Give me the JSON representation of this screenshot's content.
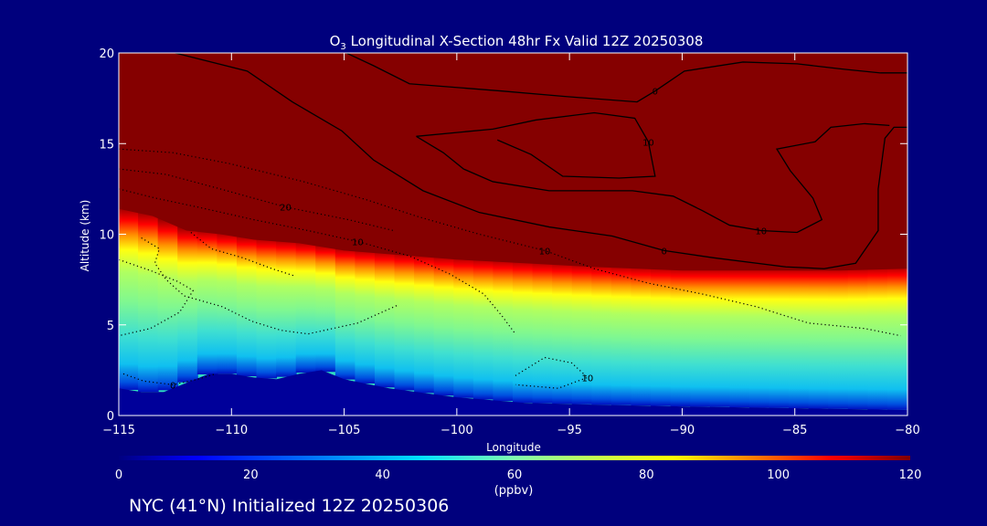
{
  "chart_data": {
    "type": "heatmap",
    "title_prefix": "O",
    "title_sub": "3",
    "title_rest": " Longitudinal X-Section 48hr  Fx Valid 12Z 20250308",
    "xlabel": "Longitude",
    "ylabel": "Altitude (km)",
    "xlim": [
      -115,
      -80
    ],
    "ylim": [
      0,
      20
    ],
    "xticks": [
      -115,
      -110,
      -105,
      -100,
      -95,
      -90,
      -85,
      -80
    ],
    "xtick_labels": [
      "−115",
      "−110",
      "−105",
      "−100",
      "−95",
      "−90",
      "−85",
      "−80"
    ],
    "yticks": [
      0,
      5,
      10,
      15,
      20
    ],
    "ytick_labels": [
      "0",
      "5",
      "10",
      "15",
      "20"
    ],
    "colorbar": {
      "label": "(ppbv)",
      "range": [
        0,
        120
      ],
      "ticks": [
        0,
        20,
        40,
        60,
        80,
        100,
        120
      ],
      "tick_labels": [
        "0",
        "20",
        "40",
        "60",
        "80",
        "100",
        "120"
      ]
    },
    "tropopause": [
      {
        "x": -115,
        "y": 11.4
      },
      {
        "x": -113.5,
        "y": 11.0
      },
      {
        "x": -112,
        "y": 10.2
      },
      {
        "x": -110.5,
        "y": 10.0
      },
      {
        "x": -109,
        "y": 9.7
      },
      {
        "x": -107,
        "y": 9.5
      },
      {
        "x": -105,
        "y": 9.1
      },
      {
        "x": -103,
        "y": 8.9
      },
      {
        "x": -100,
        "y": 8.6
      },
      {
        "x": -97,
        "y": 8.4
      },
      {
        "x": -94,
        "y": 8.2
      },
      {
        "x": -90,
        "y": 8.0
      },
      {
        "x": -86,
        "y": 8.0
      },
      {
        "x": -83,
        "y": 8.0
      },
      {
        "x": -80,
        "y": 8.1
      }
    ],
    "surface": [
      {
        "x": -115,
        "y": 1.5
      },
      {
        "x": -114,
        "y": 1.3
      },
      {
        "x": -113,
        "y": 1.3
      },
      {
        "x": -112,
        "y": 1.8
      },
      {
        "x": -111,
        "y": 2.3
      },
      {
        "x": -110,
        "y": 2.3
      },
      {
        "x": -109,
        "y": 2.1
      },
      {
        "x": -108,
        "y": 2.0
      },
      {
        "x": -107,
        "y": 2.3
      },
      {
        "x": -106,
        "y": 2.5
      },
      {
        "x": -105,
        "y": 2.0
      },
      {
        "x": -103,
        "y": 1.5
      },
      {
        "x": -100,
        "y": 1.0
      },
      {
        "x": -97,
        "y": 0.7
      },
      {
        "x": -94,
        "y": 0.6
      },
      {
        "x": -90,
        "y": 0.5
      },
      {
        "x": -85,
        "y": 0.4
      },
      {
        "x": -80,
        "y": 0.3
      }
    ],
    "contours": [
      {
        "level": "0",
        "style": "solid",
        "points": [
          [
            -112.5,
            20
          ],
          [
            -109.3,
            19.0
          ],
          [
            -107.3,
            17.3
          ],
          [
            -105.1,
            15.7
          ],
          [
            -103.7,
            14.1
          ],
          [
            -101.5,
            12.4
          ],
          [
            -99.0,
            11.2
          ],
          [
            -95.9,
            10.4
          ],
          [
            -93.1,
            9.9
          ],
          [
            -90.8,
            9.1
          ],
          [
            -88.6,
            8.7
          ],
          [
            -85.4,
            8.2
          ],
          [
            -83.7,
            8.1
          ],
          [
            -82.3,
            8.4
          ],
          [
            -81.3,
            10.2
          ],
          [
            -81.3,
            12.5
          ],
          [
            -81.0,
            15.3
          ],
          [
            -80.6,
            15.9
          ],
          [
            -80.0,
            15.9
          ]
        ]
      },
      {
        "level": "0",
        "style": "solid",
        "points": [
          [
            -80.0,
            18.9
          ],
          [
            -81.2,
            18.9
          ],
          [
            -82.8,
            19.1
          ],
          [
            -84.9,
            19.4
          ],
          [
            -87.3,
            19.5
          ],
          [
            -89.9,
            19.0
          ],
          [
            -91.2,
            17.9
          ],
          [
            -92.0,
            17.3
          ],
          [
            -95.2,
            17.6
          ],
          [
            -98.0,
            17.9
          ],
          [
            -102.1,
            18.3
          ],
          [
            -103.7,
            19.3
          ],
          [
            -104.9,
            20.0
          ]
        ]
      },
      {
        "level": "10",
        "style": "solid",
        "points": [
          [
            -101.8,
            15.4
          ],
          [
            -100.6,
            14.5
          ],
          [
            -99.7,
            13.6
          ],
          [
            -98.4,
            12.9
          ],
          [
            -95.9,
            12.4
          ],
          [
            -92.2,
            12.4
          ],
          [
            -90.4,
            12.1
          ],
          [
            -89.1,
            11.3
          ],
          [
            -87.9,
            10.5
          ],
          [
            -86.5,
            10.2
          ],
          [
            -84.9,
            10.1
          ],
          [
            -83.8,
            10.8
          ],
          [
            -84.2,
            12.0
          ],
          [
            -85.2,
            13.5
          ],
          [
            -85.8,
            14.7
          ],
          [
            -84.1,
            15.1
          ],
          [
            -83.4,
            15.9
          ],
          [
            -81.9,
            16.1
          ],
          [
            -80.8,
            16.0
          ]
        ]
      },
      {
        "level": "10",
        "style": "solid",
        "points": [
          [
            -101.8,
            15.4
          ],
          [
            -98.4,
            15.8
          ],
          [
            -96.5,
            16.3
          ],
          [
            -93.9,
            16.7
          ],
          [
            -92.1,
            16.4
          ],
          [
            -91.5,
            15.1
          ],
          [
            -91.2,
            13.2
          ],
          [
            -92.8,
            13.1
          ],
          [
            -95.3,
            13.2
          ],
          [
            -96.7,
            14.4
          ],
          [
            -98.2,
            15.2
          ]
        ]
      },
      {
        "level": "10",
        "style": "dotted",
        "points": [
          [
            -115,
            14.7
          ],
          [
            -112.6,
            14.5
          ],
          [
            -110.1,
            13.9
          ],
          [
            -106.8,
            12.9
          ],
          [
            -104.0,
            11.9
          ],
          [
            -101.8,
            11.0
          ],
          [
            -99.0,
            10.0
          ],
          [
            -96.1,
            9.1
          ],
          [
            -93.9,
            8.1
          ],
          [
            -91.5,
            7.3
          ],
          [
            -89.1,
            6.7
          ],
          [
            -86.7,
            6.0
          ],
          [
            -84.4,
            5.1
          ],
          [
            -81.9,
            4.8
          ],
          [
            -80.3,
            4.4
          ]
        ]
      },
      {
        "level": "20",
        "style": "dotted",
        "points": [
          [
            -115,
            13.6
          ],
          [
            -112.9,
            13.3
          ],
          [
            -110.5,
            12.5
          ],
          [
            -107.6,
            11.5
          ],
          [
            -104.8,
            10.8
          ],
          [
            -102.8,
            10.2
          ]
        ]
      },
      {
        "level": "10",
        "style": "dotted",
        "points": [
          [
            -115,
            12.5
          ],
          [
            -113.4,
            12.0
          ],
          [
            -111.5,
            11.5
          ],
          [
            -109.0,
            10.8
          ],
          [
            -106.6,
            10.2
          ],
          [
            -104.4,
            9.6
          ],
          [
            -102.1,
            8.8
          ],
          [
            -100.3,
            7.8
          ],
          [
            -98.8,
            6.7
          ],
          [
            -98.0,
            5.5
          ],
          [
            -97.4,
            4.5
          ]
        ]
      },
      {
        "level": "10",
        "style": "dotted",
        "points": [
          [
            -97.4,
            2.2
          ],
          [
            -96.1,
            3.2
          ],
          [
            -94.9,
            2.9
          ],
          [
            -94.2,
            2.1
          ],
          [
            -95.5,
            1.5
          ],
          [
            -97.4,
            1.7
          ]
        ]
      },
      {
        "level": "0",
        "style": "dotted",
        "points": [
          [
            -114.8,
            2.3
          ],
          [
            -113.9,
            1.9
          ],
          [
            -112.6,
            1.7
          ],
          [
            -111.5,
            2.0
          ],
          [
            -110.7,
            2.3
          ]
        ]
      },
      {
        "level": "",
        "style": "dotted",
        "points": [
          [
            -114.0,
            9.8
          ],
          [
            -113.2,
            9.2
          ],
          [
            -113.4,
            8.4
          ],
          [
            -112.9,
            7.5
          ],
          [
            -112.1,
            6.6
          ],
          [
            -110.4,
            6.0
          ],
          [
            -109.1,
            5.2
          ],
          [
            -107.8,
            4.7
          ],
          [
            -106.6,
            4.5
          ],
          [
            -104.4,
            5.1
          ],
          [
            -102.6,
            6.1
          ]
        ]
      },
      {
        "level": "",
        "style": "dotted",
        "points": [
          [
            -115,
            8.6
          ],
          [
            -113.6,
            8.0
          ],
          [
            -112.4,
            7.4
          ],
          [
            -111.7,
            6.9
          ],
          [
            -112.3,
            5.7
          ],
          [
            -113.6,
            4.8
          ],
          [
            -115,
            4.4
          ]
        ]
      },
      {
        "level": "",
        "style": "dotted",
        "points": [
          [
            -111.8,
            10.1
          ],
          [
            -110.9,
            9.2
          ],
          [
            -109.5,
            8.7
          ],
          [
            -108.2,
            8.1
          ],
          [
            -107.2,
            7.7
          ]
        ]
      }
    ]
  },
  "footer": {
    "text": "NYC (41°N) Initialized 12Z 20250306"
  },
  "colors": {
    "background": "#00007d",
    "stratosphere": "#850000",
    "contour": "#000000"
  }
}
